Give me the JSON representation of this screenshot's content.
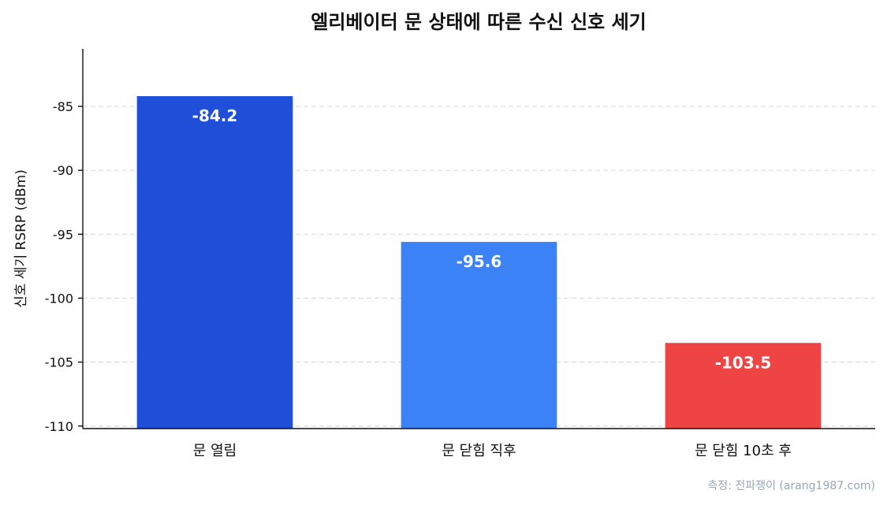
{
  "chart_data": {
    "type": "bar",
    "title": "엘리베이터 문 상태에 따른 수신 신호 세기",
    "ylabel": "신호 세기 RSRP (dBm)",
    "xlabel": "",
    "categories": [
      "문 열림",
      "문 닫힘 직후",
      "문 닫힘 10초 후"
    ],
    "values": [
      -84.2,
      -95.6,
      -103.5
    ],
    "data_labels": [
      "-84.2",
      "-95.6",
      "-103.5"
    ],
    "colors": [
      "#1f4fd8",
      "#3b82f6",
      "#ef4444"
    ],
    "ylim": [
      -110.2,
      -80.5
    ],
    "yticks": [
      -85,
      -90,
      -95,
      -100,
      -105,
      -110
    ],
    "ytick_labels": [
      "-85",
      "-90",
      "-95",
      "-100",
      "-105",
      "-110"
    ],
    "grid": true,
    "source": "측정: 전파쟁이 (arang1987.com)"
  }
}
